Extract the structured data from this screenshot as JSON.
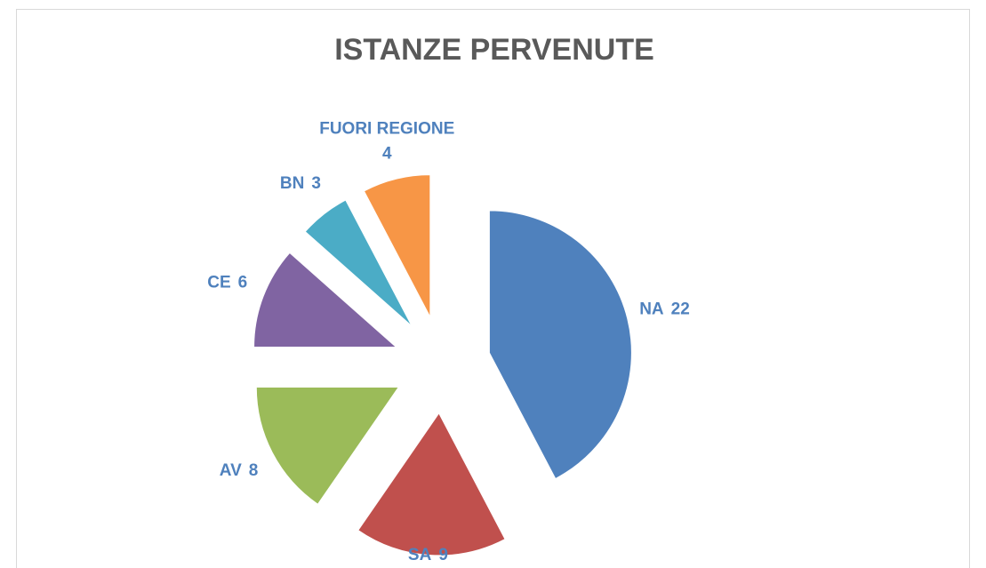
{
  "chart_data": {
    "type": "pie",
    "title": "ISTANZE PERVENUTE",
    "categories": [
      "NA",
      "SA",
      "AV",
      "CE",
      "BN",
      "FUORI REGIONE"
    ],
    "values": [
      22,
      9,
      8,
      6,
      3,
      4
    ],
    "colors": [
      "#4f81bd",
      "#c0504d",
      "#9bbb59",
      "#8064a2",
      "#4bacc6",
      "#f79646"
    ],
    "exploded": true
  }
}
